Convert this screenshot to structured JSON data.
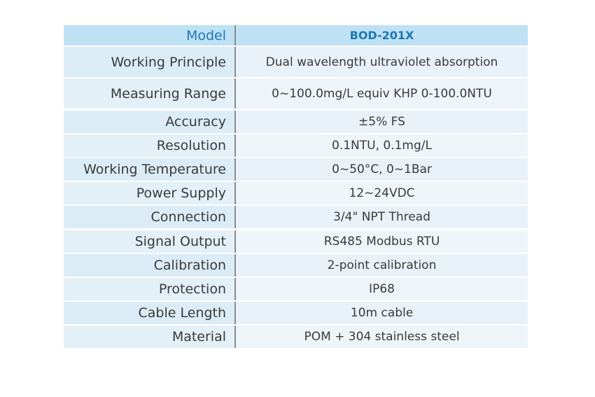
{
  "table": {
    "header": {
      "label": "Model",
      "value": "BOD-201X"
    },
    "rows": [
      {
        "label": "Working Principle",
        "value": "Dual wavelength ultraviolet absorption"
      },
      {
        "label": "Measuring Range",
        "value": "0~100.0mg/L equiv KHP 0-100.0NTU"
      },
      {
        "label": "Accuracy",
        "value": "±5% FS"
      },
      {
        "label": "Resolution",
        "value": "0.1NTU, 0.1mg/L"
      },
      {
        "label": "Working Temperature",
        "value": "0~50°C, 0~1Bar"
      },
      {
        "label": "Power Supply",
        "value": "12~24VDC"
      },
      {
        "label": "Connection",
        "value": "3/4\" NPT Thread"
      },
      {
        "label": "Signal Output",
        "value": "RS485 Modbus RTU"
      },
      {
        "label": "Calibration",
        "value": "2-point calibration"
      },
      {
        "label": "Protection",
        "value": "IP68"
      },
      {
        "label": "Cable Length",
        "value": "10m cable"
      },
      {
        "label": "Material",
        "value": "POM + 304 stainless steel"
      }
    ]
  }
}
